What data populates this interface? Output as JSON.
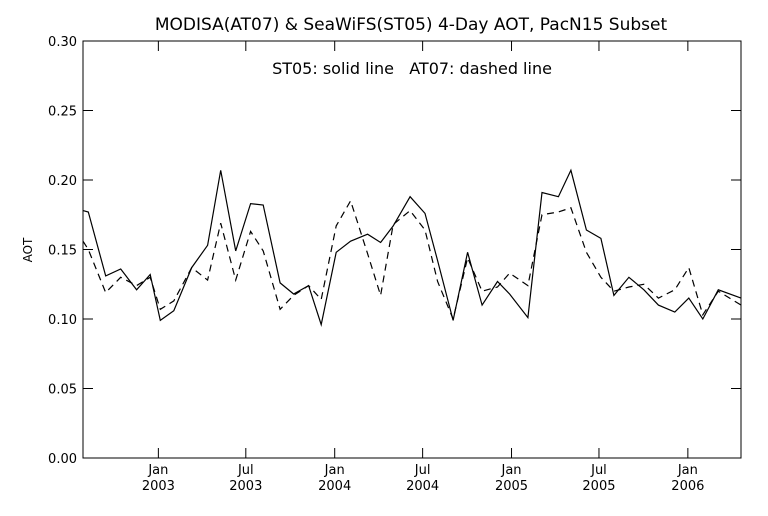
{
  "chart_data": {
    "type": "line",
    "title": "MODISA(AT07) & SeaWiFS(ST05) 4-Day AOT, PacN15 Subset",
    "annotation": "ST05: solid line   AT07: dashed line",
    "xlabel": "",
    "ylabel": "AOT",
    "xlim": [
      "2002-07-29",
      "2006-04-21"
    ],
    "ylim": [
      0,
      0.3
    ],
    "grid": false,
    "legend": "none",
    "line_color": "#000000",
    "yticks": [
      "0.00",
      "0.05",
      "0.10",
      "0.15",
      "0.20",
      "0.25",
      "0.30"
    ],
    "xticks": [
      {
        "month": "Jan",
        "year": "2003"
      },
      {
        "month": "Jul",
        "year": "2003"
      },
      {
        "month": "Jan",
        "year": "2004"
      },
      {
        "month": "Jul",
        "year": "2004"
      },
      {
        "month": "Jan",
        "year": "2005"
      },
      {
        "month": "Jul",
        "year": "2005"
      },
      {
        "month": "Jan",
        "year": "2006"
      }
    ],
    "x": [
      "2002-07-29",
      "2002-08-09",
      "2002-09-14",
      "2002-10-15",
      "2002-11-17",
      "2002-12-15",
      "2003-01-05",
      "2003-02-02",
      "2003-03-11",
      "2003-04-13",
      "2003-05-10",
      "2003-06-10",
      "2003-07-11",
      "2003-08-06",
      "2003-09-10",
      "2003-10-08",
      "2003-11-08",
      "2003-12-04",
      "2004-01-04",
      "2004-02-03",
      "2004-03-09",
      "2004-04-05",
      "2004-05-01",
      "2004-06-05",
      "2004-07-06",
      "2004-08-01",
      "2004-09-02",
      "2004-10-02",
      "2004-11-01",
      "2004-12-03",
      "2004-12-28",
      "2005-02-04",
      "2005-03-05",
      "2005-04-08",
      "2005-05-04",
      "2005-06-05",
      "2005-07-05",
      "2005-08-01",
      "2005-09-01",
      "2005-10-02",
      "2005-11-01",
      "2005-12-05",
      "2006-01-03",
      "2006-02-01",
      "2006-03-05",
      "2006-04-21"
    ],
    "series": [
      {
        "name": "ST05",
        "style": "solid",
        "values": [
          0.178,
          0.177,
          0.131,
          0.136,
          0.121,
          0.132,
          0.099,
          0.106,
          0.137,
          0.153,
          0.207,
          0.149,
          0.183,
          0.182,
          0.126,
          0.118,
          0.124,
          0.096,
          0.148,
          0.156,
          0.161,
          0.155,
          0.167,
          0.188,
          0.176,
          0.142,
          0.099,
          0.148,
          0.11,
          0.127,
          0.118,
          0.101,
          0.191,
          0.188,
          0.207,
          0.164,
          0.158,
          0.117,
          0.13,
          0.121,
          0.11,
          0.105,
          0.115,
          0.1,
          0.121,
          0.115
        ]
      },
      {
        "name": "AT07",
        "style": "dashed",
        "values": [
          0.156,
          0.15,
          0.119,
          0.13,
          0.124,
          0.13,
          0.107,
          0.113,
          0.137,
          0.128,
          0.169,
          0.128,
          0.163,
          0.149,
          0.107,
          0.117,
          0.124,
          0.114,
          0.167,
          0.185,
          0.147,
          0.117,
          0.168,
          0.178,
          0.164,
          0.127,
          0.1,
          0.144,
          0.12,
          0.123,
          0.133,
          0.124,
          0.175,
          0.177,
          0.18,
          0.148,
          0.13,
          0.12,
          0.123,
          0.125,
          0.115,
          0.121,
          0.137,
          0.103,
          0.12,
          0.11
        ]
      }
    ]
  }
}
